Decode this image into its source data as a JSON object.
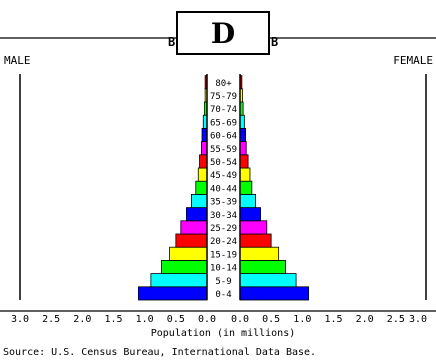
{
  "badge": "D",
  "chart_data": {
    "type": "bar",
    "subtype": "population-pyramid",
    "title_fragments": [
      "B",
      "B"
    ],
    "left_label": "MALE",
    "right_label": "FEMALE",
    "xlabel": "Population (in millions)",
    "source": "Source: U.S. Census Bureau, International Data Base.",
    "xlim": [
      0,
      3.0
    ],
    "ticks": [
      "3.0",
      "2.5",
      "2.0",
      "1.5",
      "1.0",
      "0.5",
      "0.0"
    ],
    "ticks_right": [
      "0.0",
      "0.5",
      "1.0",
      "1.5",
      "2.0",
      "2.5",
      "3.0"
    ],
    "grid": false,
    "categories": [
      "0-4",
      "5-9",
      "10-14",
      "15-19",
      "20-24",
      "25-29",
      "30-34",
      "35-39",
      "40-44",
      "45-49",
      "50-54",
      "55-59",
      "60-64",
      "65-69",
      "70-74",
      "75-79",
      "80+"
    ],
    "series": [
      {
        "name": "MALE",
        "values": [
          1.1,
          0.9,
          0.73,
          0.6,
          0.5,
          0.42,
          0.33,
          0.25,
          0.18,
          0.14,
          0.12,
          0.09,
          0.08,
          0.06,
          0.04,
          0.03,
          0.03
        ]
      },
      {
        "name": "FEMALE",
        "values": [
          1.1,
          0.9,
          0.73,
          0.62,
          0.5,
          0.43,
          0.33,
          0.25,
          0.19,
          0.16,
          0.13,
          0.1,
          0.09,
          0.07,
          0.05,
          0.04,
          0.03
        ]
      }
    ],
    "colors": [
      "#0000ff",
      "#00ffff",
      "#00ff00",
      "#ffff00",
      "#ff0000",
      "#ff00ff",
      "#0000ff",
      "#00ffff",
      "#00ff00",
      "#ffff00",
      "#ff0000",
      "#ff00ff",
      "#0000ff",
      "#00ffff",
      "#00ff00",
      "#ffff00",
      "#ff0000"
    ]
  }
}
